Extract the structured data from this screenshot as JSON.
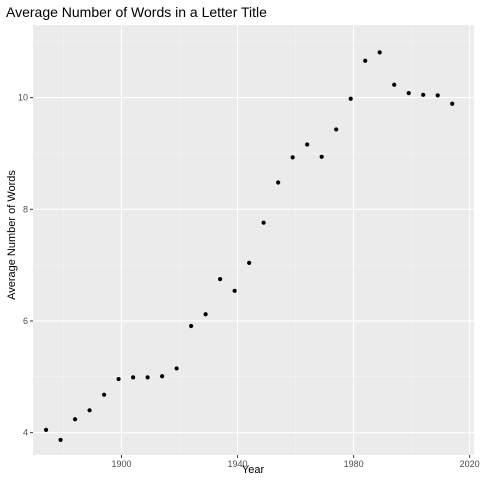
{
  "chart_data": {
    "type": "scatter",
    "title": "Average Number of Words in a Letter Title",
    "xlabel": "Year",
    "ylabel": "Average Number of Words",
    "xlim": [
      1869.5,
      2021.5
    ],
    "ylim": [
      3.6,
      11.3
    ],
    "xticks": [
      1900,
      1940,
      1980,
      2020
    ],
    "yticks": [
      4,
      6,
      8,
      10
    ],
    "xtick_labels": [
      "1900",
      "1940",
      "1980",
      "2020"
    ],
    "ytick_labels": [
      "4",
      "6",
      "8",
      "10"
    ],
    "grid": true,
    "legend": "none",
    "colors": {
      "panel_background": "#ebebeb",
      "grid_major": "#ffffff",
      "grid_minor": "#f4f4f4",
      "point": "#000000"
    },
    "points": [
      {
        "x": 1874,
        "y": 4.05
      },
      {
        "x": 1879,
        "y": 3.87
      },
      {
        "x": 1884,
        "y": 4.24
      },
      {
        "x": 1889,
        "y": 4.4
      },
      {
        "x": 1894,
        "y": 4.68
      },
      {
        "x": 1899,
        "y": 4.96
      },
      {
        "x": 1904,
        "y": 4.99
      },
      {
        "x": 1909,
        "y": 4.99
      },
      {
        "x": 1914,
        "y": 5.01
      },
      {
        "x": 1919,
        "y": 5.15
      },
      {
        "x": 1924,
        "y": 5.91
      },
      {
        "x": 1929,
        "y": 6.12
      },
      {
        "x": 1934,
        "y": 6.75
      },
      {
        "x": 1939,
        "y": 6.54
      },
      {
        "x": 1944,
        "y": 7.04
      },
      {
        "x": 1949,
        "y": 7.76
      },
      {
        "x": 1954,
        "y": 8.48
      },
      {
        "x": 1959,
        "y": 8.93
      },
      {
        "x": 1964,
        "y": 9.16
      },
      {
        "x": 1969,
        "y": 8.94
      },
      {
        "x": 1974,
        "y": 9.43
      },
      {
        "x": 1979,
        "y": 9.98
      },
      {
        "x": 1984,
        "y": 10.66
      },
      {
        "x": 1989,
        "y": 10.81
      },
      {
        "x": 1994,
        "y": 10.23
      },
      {
        "x": 1999,
        "y": 10.08
      },
      {
        "x": 2004,
        "y": 10.05
      },
      {
        "x": 2009,
        "y": 10.04
      },
      {
        "x": 2014,
        "y": 9.89
      }
    ]
  }
}
